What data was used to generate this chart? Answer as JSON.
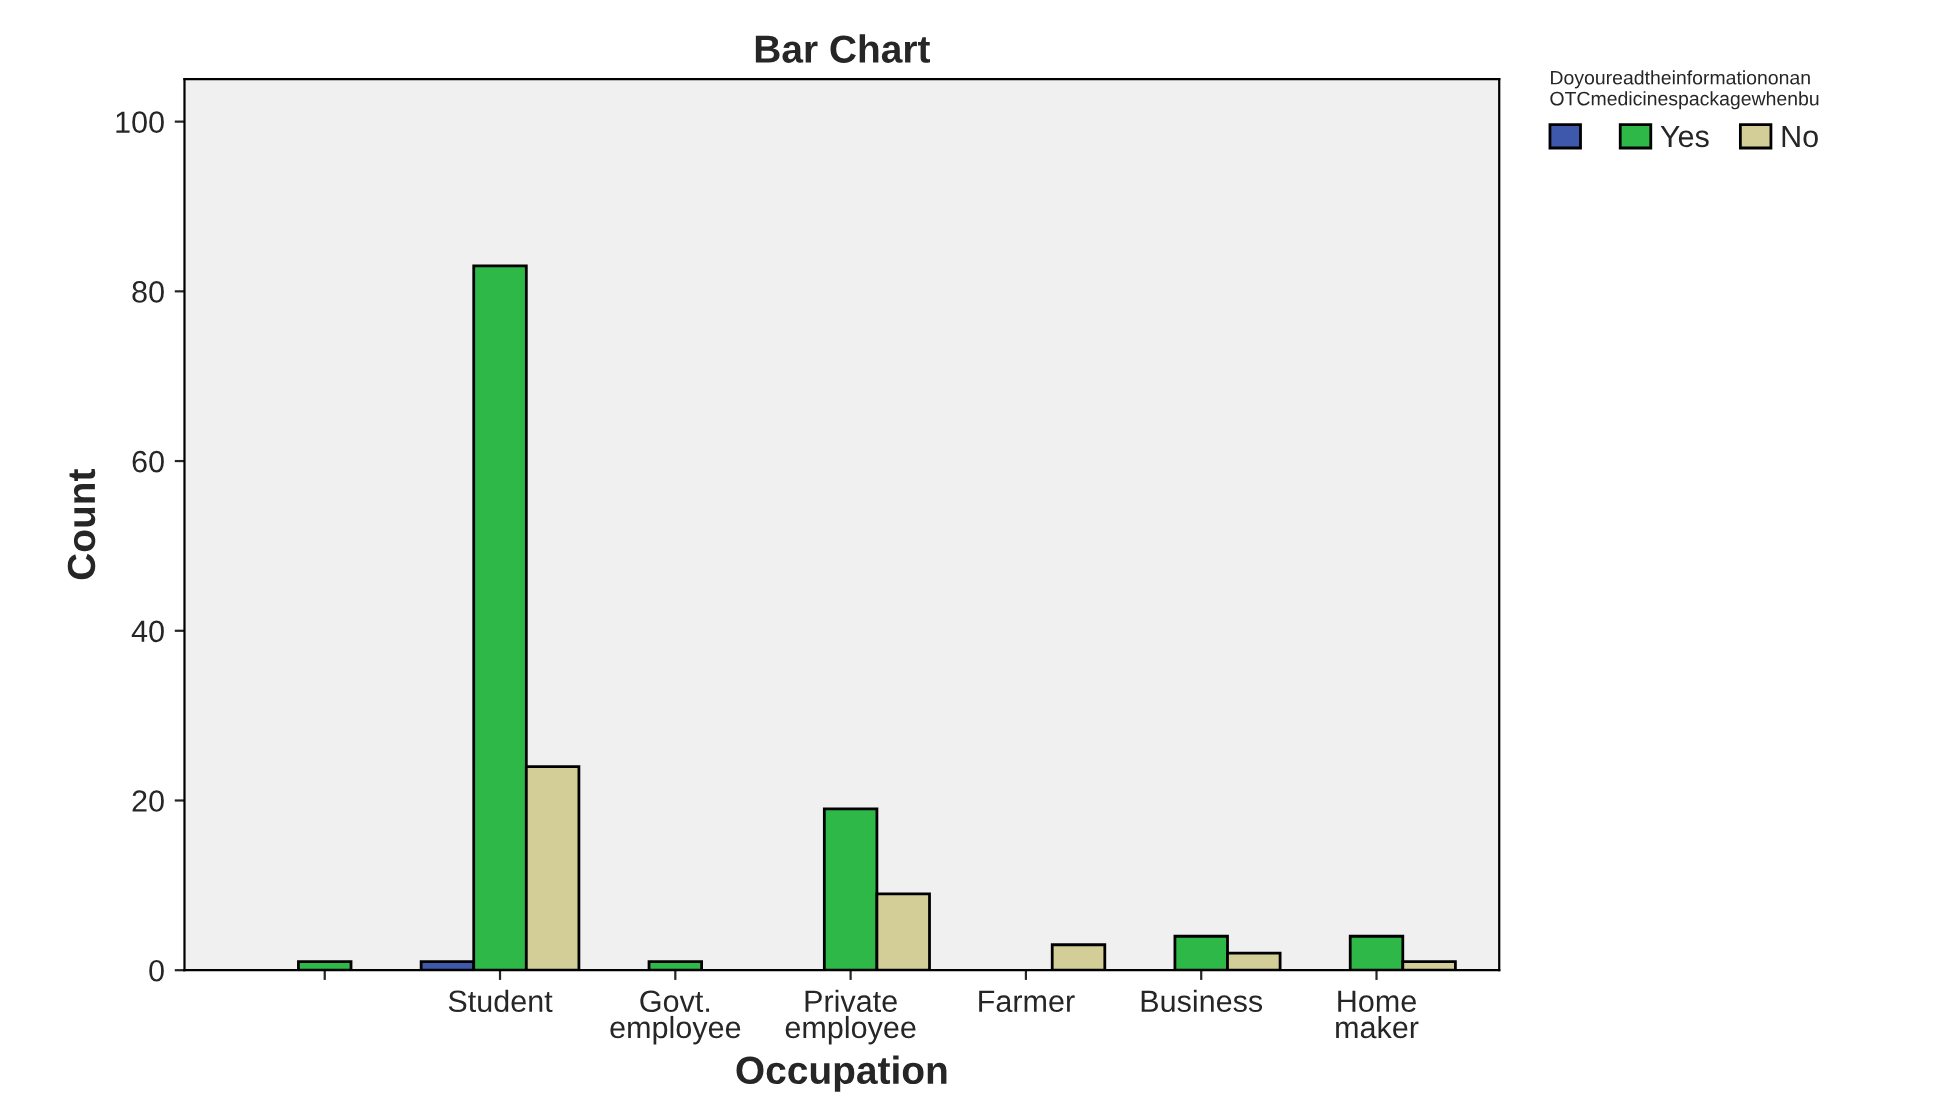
{
  "chart_data": {
    "type": "bar",
    "title": "Bar Chart",
    "xlabel": "Occupation",
    "ylabel": "Count",
    "legend_title": "Doyoureadtheinformationonan\nOTCmedicinespackagewhenbu",
    "categories": [
      null,
      "Student",
      "Govt.\nemployee",
      "Private\nemployee",
      "Farmer",
      "Business",
      "Home\nmaker"
    ],
    "series": [
      {
        "color": "#3e58ac",
        "values": [
          null,
          1,
          null,
          null,
          null,
          null,
          null
        ]
      },
      {
        "name": "Yes",
        "color": "#2eb848",
        "values": [
          1,
          83,
          1,
          19,
          null,
          4,
          4
        ]
      },
      {
        "name": "No",
        "color": "#d3ce97",
        "values": [
          null,
          24,
          null,
          9,
          3,
          2,
          1
        ]
      }
    ],
    "ylim": [
      0,
      105
    ],
    "yticks": [
      0,
      20,
      40,
      60,
      80,
      100
    ],
    "grid": false,
    "legend": "top right"
  }
}
